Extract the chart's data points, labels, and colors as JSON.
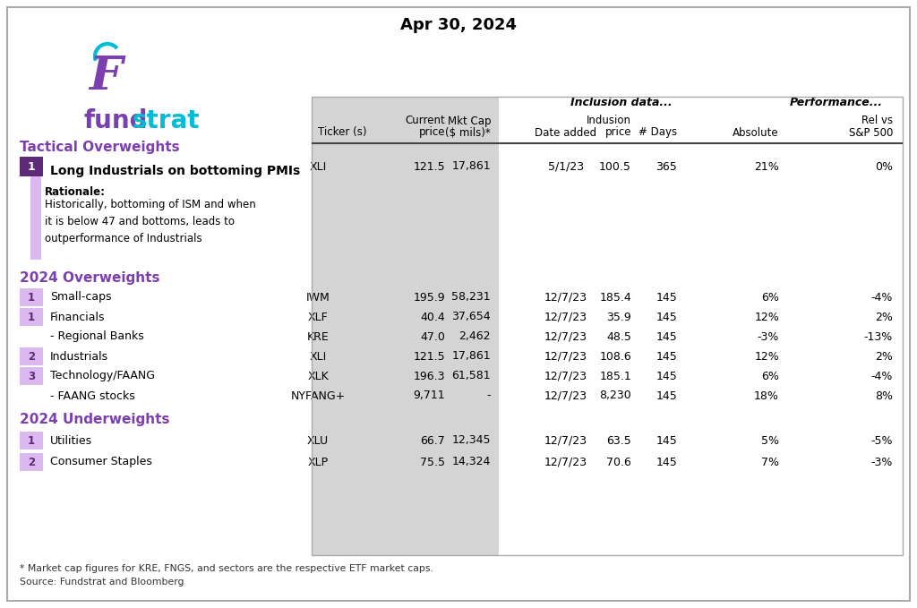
{
  "title": "Apr 30, 2024",
  "bg_color": "#ffffff",
  "table_bg": "#d4d4d4",
  "purple_dark": "#5d2a7a",
  "purple_medium": "#7b3fb0",
  "purple_light": "#dbb8f0",
  "teal": "#00bcd4",
  "sections": [
    {
      "type": "tactical",
      "label": "Tactical Overweights",
      "rows": [
        {
          "num": "1",
          "num_bg": "#5d2a7a",
          "num_color": "#ffffff",
          "bold": true,
          "name": "Long Industrials on bottoming PMIs",
          "has_rationale": true,
          "rationale_bold": "Rationale:",
          "rationale_text": "Historically, bottoming of ISM and when\nit is below 47 and bottoms, leads to\noutperformance of Industrials",
          "left_bar_color": "#dbb8f0",
          "ticker": "XLI",
          "current_price": "121.5",
          "mkt_cap": "17,861",
          "date_added": "5/1/23",
          "inclusion_price": "100.5",
          "days": "365",
          "absolute": "21%",
          "rel_sp500": "0%"
        }
      ]
    },
    {
      "type": "overweights",
      "label": "2024 Overweights",
      "rows": [
        {
          "num": "1",
          "num_bg": "#dbb8f0",
          "num_color": "#5d2a7a",
          "bold": false,
          "name": "Small-caps",
          "has_rationale": false,
          "ticker": "IWM",
          "current_price": "195.9",
          "mkt_cap": "58,231",
          "date_added": "12/7/23",
          "inclusion_price": "185.4",
          "days": "145",
          "absolute": "6%",
          "rel_sp500": "-4%"
        },
        {
          "num": "1",
          "num_bg": "#dbb8f0",
          "num_color": "#5d2a7a",
          "bold": false,
          "name": "Financials",
          "has_rationale": false,
          "ticker": "XLF",
          "current_price": "40.4",
          "mkt_cap": "37,654",
          "date_added": "12/7/23",
          "inclusion_price": "35.9",
          "days": "145",
          "absolute": "12%",
          "rel_sp500": "2%"
        },
        {
          "num": "",
          "num_bg": null,
          "num_color": "#000000",
          "bold": false,
          "name": "- Regional Banks",
          "has_rationale": false,
          "ticker": "KRE",
          "current_price": "47.0",
          "mkt_cap": "2,462",
          "date_added": "12/7/23",
          "inclusion_price": "48.5",
          "days": "145",
          "absolute": "-3%",
          "rel_sp500": "-13%"
        },
        {
          "num": "2",
          "num_bg": "#dbb8f0",
          "num_color": "#5d2a7a",
          "bold": false,
          "name": "Industrials",
          "has_rationale": false,
          "ticker": "XLI",
          "current_price": "121.5",
          "mkt_cap": "17,861",
          "date_added": "12/7/23",
          "inclusion_price": "108.6",
          "days": "145",
          "absolute": "12%",
          "rel_sp500": "2%"
        },
        {
          "num": "3",
          "num_bg": "#dbb8f0",
          "num_color": "#5d2a7a",
          "bold": false,
          "name": "Technology/FAANG",
          "has_rationale": false,
          "ticker": "XLK",
          "current_price": "196.3",
          "mkt_cap": "61,581",
          "date_added": "12/7/23",
          "inclusion_price": "185.1",
          "days": "145",
          "absolute": "6%",
          "rel_sp500": "-4%"
        },
        {
          "num": "",
          "num_bg": null,
          "num_color": "#000000",
          "bold": false,
          "name": "- FAANG stocks",
          "has_rationale": false,
          "ticker": "NYFANG+",
          "current_price": "9,711",
          "mkt_cap": "-",
          "date_added": "12/7/23",
          "inclusion_price": "8,230",
          "days": "145",
          "absolute": "18%",
          "rel_sp500": "8%"
        }
      ]
    },
    {
      "type": "underweights",
      "label": "2024 Underweights",
      "rows": [
        {
          "num": "1",
          "num_bg": "#dbb8f0",
          "num_color": "#5d2a7a",
          "bold": false,
          "name": "Utilities",
          "has_rationale": false,
          "ticker": "XLU",
          "current_price": "66.7",
          "mkt_cap": "12,345",
          "date_added": "12/7/23",
          "inclusion_price": "63.5",
          "days": "145",
          "absolute": "5%",
          "rel_sp500": "-5%"
        },
        {
          "num": "2",
          "num_bg": "#dbb8f0",
          "num_color": "#5d2a7a",
          "bold": false,
          "name": "Consumer Staples",
          "has_rationale": false,
          "ticker": "XLP",
          "current_price": "75.5",
          "mkt_cap": "14,324",
          "date_added": "12/7/23",
          "inclusion_price": "70.6",
          "days": "145",
          "absolute": "7%",
          "rel_sp500": "-3%"
        }
      ]
    }
  ],
  "footnotes": [
    "* Market cap figures for KRE, FNGS, and sectors are the respective ETF market caps.",
    "Source: Fundstrat and Bloomberg"
  ]
}
